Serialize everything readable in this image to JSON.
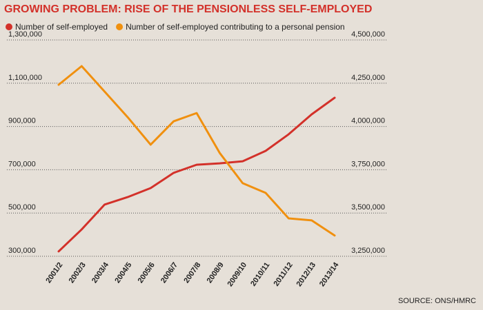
{
  "chart_data": {
    "type": "line",
    "title": "GROWING PROBLEM: RISE OF THE PENSIONLESS SELF-EMPLOYED",
    "source": "SOURCE: ONS/HMRC",
    "categories": [
      "2001/2",
      "2002/3",
      "2003/4",
      "2004/5",
      "2005/6",
      "2006/7",
      "2007/8",
      "2008/9",
      "2009/10",
      "2010/11",
      "2011/12",
      "2012/13",
      "2013/14"
    ],
    "series": [
      {
        "name": "Number of self-employed",
        "color": "#d3312a",
        "axis": "y2",
        "values": [
          3278000,
          3405000,
          3549000,
          3592000,
          3644000,
          3732000,
          3779000,
          3787000,
          3799000,
          3859000,
          3955000,
          4070000,
          4166000
        ]
      },
      {
        "name": "Number of self-employed contributing to a personal pension",
        "color": "#f0900f",
        "axis": "y",
        "values": [
          1093000,
          1179000,
          1061000,
          943000,
          816000,
          924000,
          962000,
          778000,
          638000,
          593000,
          475000,
          466000,
          396000
        ]
      }
    ],
    "ylim": [
      300000,
      1300000
    ],
    "yticks": [
      {
        "value": 300000,
        "label": "300,000"
      },
      {
        "value": 500000,
        "label": "500,000"
      },
      {
        "value": 700000,
        "label": "700,000"
      },
      {
        "value": 900000,
        "label": "900,000"
      },
      {
        "value": 1100000,
        "label": "1,100,000"
      },
      {
        "value": 1300000,
        "label": "1,300,000"
      }
    ],
    "y2lim": [
      3250000,
      4500000
    ],
    "y2ticks": [
      {
        "value": 3250000,
        "label": "3,250,000"
      },
      {
        "value": 3500000,
        "label": "3,500,000"
      },
      {
        "value": 3750000,
        "label": "3,750,000"
      },
      {
        "value": 4000000,
        "label": "4,000,000"
      },
      {
        "value": 4250000,
        "label": "4,250,000"
      },
      {
        "value": 4500000,
        "label": "4,500,000"
      }
    ],
    "grid": true
  }
}
